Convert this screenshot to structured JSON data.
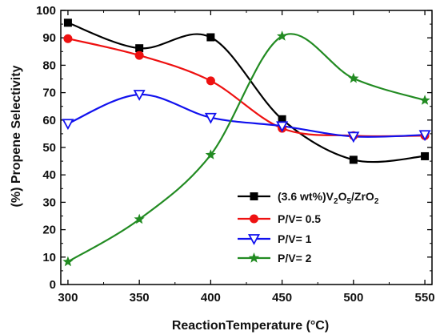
{
  "chart_data": {
    "type": "scatter",
    "xlabel": "ReactionTemperature (°C)",
    "ylabel": "(%) Propene Selectivity",
    "xlim": [
      295,
      555
    ],
    "ylim": [
      0,
      100
    ],
    "xticks": [
      300,
      350,
      400,
      450,
      500,
      550
    ],
    "yticks": [
      0,
      10,
      20,
      30,
      40,
      50,
      60,
      70,
      80,
      90,
      100
    ],
    "grid": false,
    "legend": "lower-right",
    "smooth_lines": true,
    "series": [
      {
        "name": "(3.6 wt%)V2O5/ZrO2",
        "legend_parts": [
          "(3.6 wt%)V",
          "2",
          "O",
          "5",
          "/ZrO",
          "2"
        ],
        "color": "#000000",
        "marker": "square",
        "x": [
          300,
          350,
          400,
          450,
          500,
          550
        ],
        "y": [
          95.5,
          86.2,
          90.2,
          60.3,
          45.5,
          46.8
        ]
      },
      {
        "name": "P/V= 0.5",
        "color": "#ee1111",
        "marker": "circle",
        "x": [
          300,
          350,
          400,
          450,
          500,
          550
        ],
        "y": [
          89.7,
          83.6,
          74.3,
          57.0,
          54.3,
          54.3
        ]
      },
      {
        "name": "P/V= 1",
        "color": "#1111ee",
        "marker": "triangle-down",
        "x": [
          300,
          350,
          400,
          450,
          500,
          550
        ],
        "y": [
          58.7,
          69.3,
          60.9,
          57.8,
          54.0,
          54.6
        ]
      },
      {
        "name": "P/V= 2",
        "color": "#228b22",
        "marker": "star",
        "x": [
          300,
          350,
          400,
          450,
          500,
          550
        ],
        "y": [
          8.3,
          23.8,
          47.3,
          90.6,
          75.2,
          67.2
        ]
      }
    ]
  }
}
